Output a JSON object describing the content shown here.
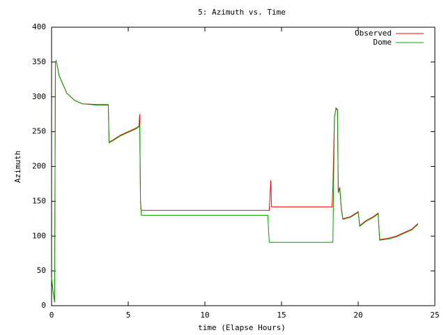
{
  "chart_data": {
    "type": "line",
    "title": "5: Azimuth vs. Time",
    "x_label": "time (Elapse Hours)",
    "y_label": "Azimuth",
    "x": [
      0,
      0.1,
      0.2,
      0.25,
      0.3,
      0.5,
      1,
      1.5,
      2,
      3,
      3.7,
      3.75,
      4,
      4.5,
      5,
      5.5,
      5.7,
      5.75,
      5.8,
      5.85,
      14.1,
      14.2,
      14.3,
      14.35,
      18.3,
      18.35,
      18.45,
      18.55,
      18.65,
      18.7,
      18.8,
      18.9,
      19,
      19.5,
      20,
      20.1,
      20.5,
      21,
      21.3,
      21.4,
      22,
      22.5,
      23,
      23.5,
      23.9
    ],
    "series": [
      {
        "name": "Observed",
        "color": "#ff0000",
        "values": [
          40,
          20,
          5,
          350,
          352,
          330,
          305,
          295,
          290,
          289,
          289,
          235,
          238,
          245,
          250,
          255,
          258,
          275,
          150,
          137,
          137,
          137,
          180,
          142,
          142,
          172,
          270,
          284,
          280,
          165,
          170,
          140,
          125,
          128,
          135,
          115,
          122,
          128,
          133,
          95,
          97,
          100,
          105,
          110,
          118
        ]
      },
      {
        "name": "Dome",
        "color": "#00a000",
        "values": [
          40,
          20,
          5,
          350,
          352,
          330,
          305,
          295,
          290,
          288,
          288,
          234,
          237,
          244,
          249,
          254,
          257,
          260,
          150,
          130,
          130,
          91,
          91,
          91,
          91,
          91,
          270,
          284,
          282,
          162,
          168,
          138,
          124,
          127,
          134,
          114,
          121,
          127,
          132,
          94,
          96,
          99,
          104,
          109,
          117
        ]
      }
    ],
    "xlim": [
      0,
      25
    ],
    "xticks": [
      0,
      5,
      10,
      15,
      20,
      25
    ],
    "ylim": [
      0,
      400
    ],
    "yticks": [
      0,
      50,
      100,
      150,
      200,
      250,
      300,
      350,
      400
    ],
    "grid": false,
    "legend_position": "top-right"
  }
}
